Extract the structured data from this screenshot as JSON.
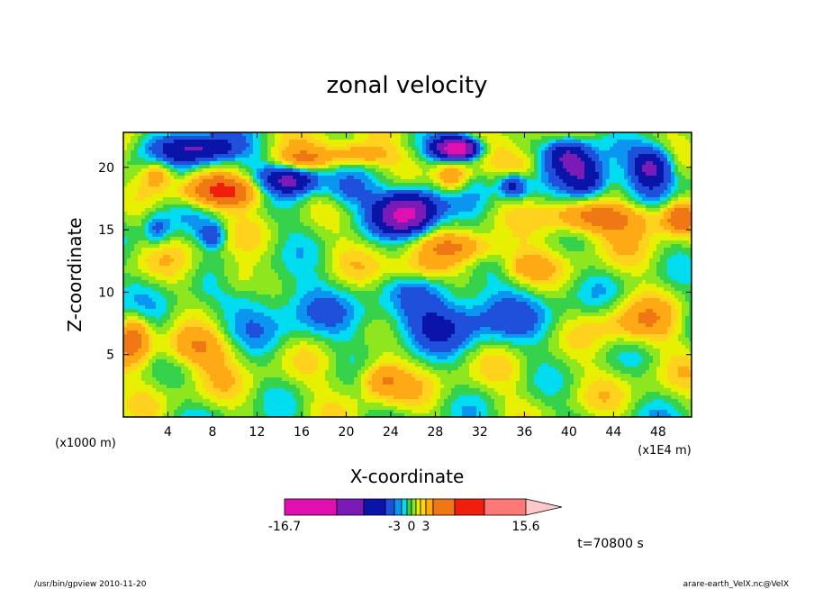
{
  "chart_data": {
    "type": "heatmap",
    "title": "zonal velocity",
    "xlabel": "X-coordinate",
    "ylabel": "Z-coordinate",
    "x_unit": "(x1E4 m)",
    "y_unit": "(x1000 m)",
    "xlim": [
      0,
      51
    ],
    "ylim": [
      0,
      22.8
    ],
    "x_ticks": [
      "4",
      "8",
      "12",
      "16",
      "20",
      "24",
      "28",
      "32",
      "36",
      "40",
      "44",
      "48"
    ],
    "y_ticks": [
      "5",
      "10",
      "15",
      "20"
    ],
    "colorbar": {
      "levels": [
        -16.7,
        -12.0,
        -8.0,
        -5.0,
        -3.0,
        -2.0,
        -1.0,
        0.0,
        1.0,
        2.0,
        3.0,
        5.0,
        8.0,
        12.0,
        15.6
      ],
      "colors": [
        "#e010b0",
        "#7a1bb8",
        "#0a14a8",
        "#1e50dc",
        "#0a96f0",
        "#00dcf0",
        "#37d24b",
        "#8ee61e",
        "#e6f000",
        "#ffd21e",
        "#ffaa14",
        "#f07814",
        "#f01e0a",
        "#ff7878",
        "#ffc8c8"
      ],
      "labels": [
        "-16.7",
        "-3",
        "0",
        "3",
        "15.6"
      ]
    },
    "grid": false,
    "legend": "colorbar-bottom"
  },
  "annotations": {
    "time": "t=70800 s",
    "footer_left": "/usr/bin/gpview   2010-11-20",
    "footer_right": "arare-earth_VelX.nc@VelX"
  }
}
